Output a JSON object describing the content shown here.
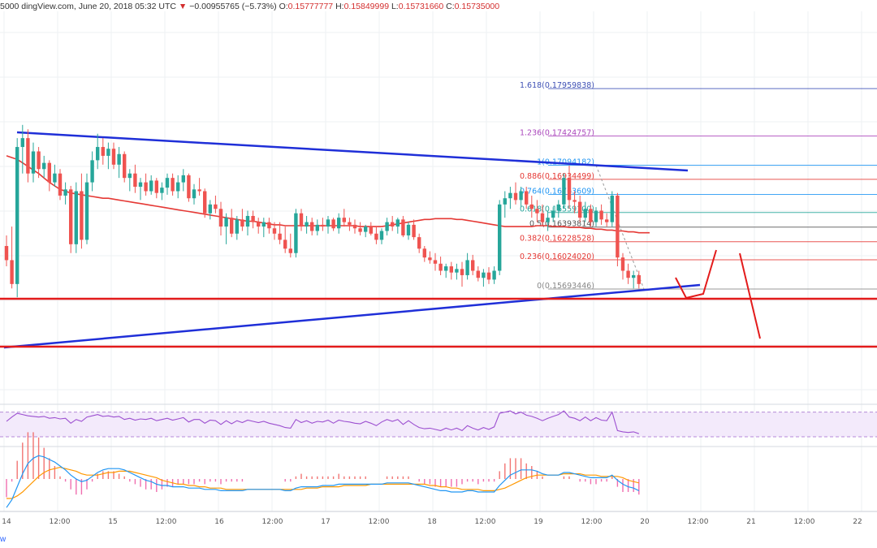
{
  "header": {
    "partial_open": "5000",
    "source": "dingView.com, June 20, 2018 05:32 UTC",
    "arrow": "▼",
    "change": "−0.00955765 (−5.73%)",
    "o_label": "O:",
    "o_value": "0.15777777",
    "h_label": "H:",
    "h_value": "0.15849999",
    "l_label": "L:",
    "l_value": "0.15731660",
    "c_label": "C:",
    "c_value": "0.15735000"
  },
  "footer_brand": "w",
  "colors": {
    "bull": "#26a69a",
    "bear": "#ef5350",
    "ma": "#e53935",
    "trendline": "#1f2fd8",
    "support": "#e31b1b",
    "rsi": "#9c4fd0",
    "macd": "#2196f3",
    "signal": "#ff9800"
  },
  "chart_data": {
    "type": "candlestick",
    "x_tick_labels": [
      "14",
      "12:00",
      "15",
      "12:00",
      "16",
      "12:00",
      "17",
      "12:00",
      "18",
      "12:00",
      "19",
      "12:00",
      "20",
      "12:00",
      "21",
      "12:00",
      "22"
    ],
    "fibonacci": [
      {
        "level": "0",
        "value": "0.15693446",
        "color": "#888888"
      },
      {
        "level": "0.236",
        "value": "0.16024020",
        "color": "#e53935"
      },
      {
        "level": "0.382",
        "value": "0.16228528",
        "color": "#e53935"
      },
      {
        "level": "0.5",
        "value": "0.16393814",
        "color": "#555555"
      },
      {
        "level": "0.618",
        "value": "0.16559100",
        "color": "#26a69a"
      },
      {
        "level": "0.764",
        "value": "0.16763609",
        "color": "#2196f3"
      },
      {
        "level": "0.886",
        "value": "0.16934499",
        "color": "#e53935"
      },
      {
        "level": "1",
        "value": "0.17094182",
        "color": "#2196f3"
      },
      {
        "level": "1.236",
        "value": "0.17424757",
        "color": "#ab47bc"
      },
      {
        "level": "1.618",
        "value": "0.17959838",
        "color": "#3f51b5"
      }
    ],
    "candles": [
      [
        0.1618,
        0.163,
        0.1595,
        0.1602
      ],
      [
        0.1602,
        0.164,
        0.157,
        0.1575
      ],
      [
        0.1575,
        0.174,
        0.156,
        0.173
      ],
      [
        0.173,
        0.1755,
        0.17,
        0.174
      ],
      [
        0.174,
        0.175,
        0.169,
        0.17
      ],
      [
        0.17,
        0.1735,
        0.169,
        0.1725
      ],
      [
        0.1725,
        0.173,
        0.1695,
        0.1705
      ],
      [
        0.1705,
        0.172,
        0.1695,
        0.1712
      ],
      [
        0.1712,
        0.1715,
        0.168,
        0.169
      ],
      [
        0.169,
        0.171,
        0.1685,
        0.17
      ],
      [
        0.17,
        0.1705,
        0.167,
        0.1675
      ],
      [
        0.1675,
        0.169,
        0.1665,
        0.1682
      ],
      [
        0.1682,
        0.1686,
        0.161,
        0.162
      ],
      [
        0.162,
        0.169,
        0.161,
        0.168
      ],
      [
        0.168,
        0.17,
        0.1615,
        0.1625
      ],
      [
        0.1625,
        0.17,
        0.162,
        0.169
      ],
      [
        0.169,
        0.1725,
        0.168,
        0.1715
      ],
      [
        0.1715,
        0.1745,
        0.1705,
        0.173
      ],
      [
        0.173,
        0.174,
        0.171,
        0.172
      ],
      [
        0.172,
        0.1735,
        0.1705,
        0.1728
      ],
      [
        0.1728,
        0.1735,
        0.1705,
        0.171
      ],
      [
        0.171,
        0.173,
        0.1695,
        0.1722
      ],
      [
        0.1722,
        0.1725,
        0.169,
        0.1695
      ],
      [
        0.1695,
        0.1705,
        0.168,
        0.17
      ],
      [
        0.17,
        0.171,
        0.1678,
        0.1685
      ],
      [
        0.1685,
        0.1695,
        0.167,
        0.169
      ],
      [
        0.169,
        0.17,
        0.1675,
        0.168
      ],
      [
        0.168,
        0.1698,
        0.1676,
        0.1692
      ],
      [
        0.1692,
        0.1695,
        0.1672,
        0.1678
      ],
      [
        0.1678,
        0.169,
        0.167,
        0.1684
      ],
      [
        0.1684,
        0.17,
        0.1676,
        0.1695
      ],
      [
        0.1695,
        0.17,
        0.1675,
        0.168
      ],
      [
        0.168,
        0.1698,
        0.1672,
        0.169
      ],
      [
        0.169,
        0.1705,
        0.168,
        0.1698
      ],
      [
        0.1698,
        0.17,
        0.1668,
        0.1672
      ],
      [
        0.1672,
        0.1688,
        0.1665,
        0.1682
      ],
      [
        0.1682,
        0.1695,
        0.1675,
        0.168
      ],
      [
        0.168,
        0.1683,
        0.165,
        0.1655
      ],
      [
        0.1655,
        0.167,
        0.1648,
        0.1665
      ],
      [
        0.1665,
        0.1675,
        0.1655,
        0.166
      ],
      [
        0.166,
        0.1668,
        0.163,
        0.164
      ],
      [
        0.164,
        0.1655,
        0.162,
        0.165
      ],
      [
        0.165,
        0.166,
        0.1628,
        0.1632
      ],
      [
        0.1632,
        0.1652,
        0.1625,
        0.1648
      ],
      [
        0.1648,
        0.166,
        0.1635,
        0.164
      ],
      [
        0.164,
        0.1658,
        0.163,
        0.1652
      ],
      [
        0.1652,
        0.1658,
        0.1638,
        0.1645
      ],
      [
        0.1645,
        0.165,
        0.1632,
        0.164
      ],
      [
        0.164,
        0.165,
        0.1628,
        0.1645
      ],
      [
        0.1645,
        0.165,
        0.1632,
        0.1638
      ],
      [
        0.1638,
        0.1645,
        0.1625,
        0.1632
      ],
      [
        0.1632,
        0.1645,
        0.162,
        0.1625
      ],
      [
        0.1625,
        0.164,
        0.161,
        0.1615
      ],
      [
        0.1615,
        0.1632,
        0.1605,
        0.161
      ],
      [
        0.161,
        0.166,
        0.1605,
        0.1655
      ],
      [
        0.1655,
        0.166,
        0.1635,
        0.164
      ],
      [
        0.164,
        0.1652,
        0.1632,
        0.1645
      ],
      [
        0.1645,
        0.165,
        0.163,
        0.1635
      ],
      [
        0.1635,
        0.1648,
        0.163,
        0.1642
      ],
      [
        0.1642,
        0.165,
        0.1635,
        0.164
      ],
      [
        0.164,
        0.1652,
        0.1632,
        0.1648
      ],
      [
        0.1648,
        0.165,
        0.1635,
        0.1638
      ],
      [
        0.1638,
        0.1655,
        0.1632,
        0.165
      ],
      [
        0.165,
        0.166,
        0.164,
        0.1645
      ],
      [
        0.1645,
        0.165,
        0.1635,
        0.1642
      ],
      [
        0.1642,
        0.1648,
        0.1632,
        0.1638
      ],
      [
        0.1638,
        0.1645,
        0.163,
        0.1634
      ],
      [
        0.1634,
        0.1642,
        0.1628,
        0.164
      ],
      [
        0.164,
        0.1645,
        0.163,
        0.1632
      ],
      [
        0.1632,
        0.164,
        0.162,
        0.1625
      ],
      [
        0.1625,
        0.1638,
        0.162,
        0.1635
      ],
      [
        0.1635,
        0.165,
        0.163,
        0.1645
      ],
      [
        0.1645,
        0.1652,
        0.1635,
        0.164
      ],
      [
        0.164,
        0.165,
        0.1632,
        0.1648
      ],
      [
        0.1648,
        0.1652,
        0.1628,
        0.163
      ],
      [
        0.163,
        0.1645,
        0.1625,
        0.1642
      ],
      [
        0.1642,
        0.1648,
        0.1625,
        0.1628
      ],
      [
        0.1628,
        0.1632,
        0.161,
        0.1615
      ],
      [
        0.1615,
        0.1618,
        0.16,
        0.1605
      ],
      [
        0.1605,
        0.1612,
        0.1598,
        0.1602
      ],
      [
        0.1602,
        0.161,
        0.159,
        0.1598
      ],
      [
        0.1598,
        0.1606,
        0.1585,
        0.159
      ],
      [
        0.159,
        0.1598,
        0.1582,
        0.1595
      ],
      [
        0.1595,
        0.16,
        0.158,
        0.1588
      ],
      [
        0.1588,
        0.1598,
        0.158,
        0.1592
      ],
      [
        0.1592,
        0.16,
        0.1572,
        0.1585
      ],
      [
        0.1585,
        0.161,
        0.158,
        0.1602
      ],
      [
        0.1602,
        0.1608,
        0.1585,
        0.159
      ],
      [
        0.159,
        0.1595,
        0.1578,
        0.1582
      ],
      [
        0.1582,
        0.1592,
        0.1572,
        0.1588
      ],
      [
        0.1588,
        0.1594,
        0.1575,
        0.158
      ],
      [
        0.158,
        0.1595,
        0.1575,
        0.159
      ],
      [
        0.159,
        0.167,
        0.1585,
        0.1665
      ],
      [
        0.1665,
        0.168,
        0.165,
        0.1672
      ],
      [
        0.1672,
        0.1685,
        0.166,
        0.1678
      ],
      [
        0.1678,
        0.169,
        0.1665,
        0.167
      ],
      [
        0.167,
        0.1685,
        0.1662,
        0.168
      ],
      [
        0.168,
        0.1685,
        0.166,
        0.1665
      ],
      [
        0.1665,
        0.1675,
        0.165,
        0.166
      ],
      [
        0.166,
        0.167,
        0.1645,
        0.1655
      ],
      [
        0.1655,
        0.1665,
        0.164,
        0.1645
      ],
      [
        0.1645,
        0.1658,
        0.1635,
        0.165
      ],
      [
        0.165,
        0.1662,
        0.1645,
        0.1658
      ],
      [
        0.1658,
        0.167,
        0.165,
        0.1665
      ],
      [
        0.1665,
        0.17,
        0.166,
        0.1695
      ],
      [
        0.1695,
        0.1709,
        0.166,
        0.167
      ],
      [
        0.167,
        0.168,
        0.1655,
        0.1668
      ],
      [
        0.1668,
        0.1675,
        0.1645,
        0.165
      ],
      [
        0.165,
        0.1668,
        0.1645,
        0.166
      ],
      [
        0.166,
        0.1665,
        0.164,
        0.1645
      ],
      [
        0.1645,
        0.1662,
        0.164,
        0.1658
      ],
      [
        0.1658,
        0.1665,
        0.1642,
        0.1648
      ],
      [
        0.1648,
        0.1655,
        0.164,
        0.1645
      ],
      [
        0.1645,
        0.168,
        0.164,
        0.1675
      ],
      [
        0.1675,
        0.1678,
        0.1595,
        0.1605
      ],
      [
        0.1605,
        0.161,
        0.158,
        0.159
      ],
      [
        0.159,
        0.1598,
        0.1575,
        0.1582
      ],
      [
        0.1582,
        0.159,
        0.157,
        0.1585
      ],
      [
        0.1585,
        0.159,
        0.157,
        0.1575
      ]
    ],
    "ma": [
      0.172,
      0.1718,
      0.1716,
      0.1712,
      0.1708,
      0.1704,
      0.17,
      0.1695,
      0.169,
      0.1686,
      0.1682,
      0.168,
      0.1678,
      0.1677,
      0.1676,
      0.1675,
      0.1674,
      0.1673,
      0.1672,
      0.1672,
      0.1671,
      0.167,
      0.1669,
      0.1668,
      0.1667,
      0.1666,
      0.1665,
      0.1664,
      0.1663,
      0.1662,
      0.1661,
      0.166,
      0.1659,
      0.1658,
      0.1657,
      0.1656,
      0.1655,
      0.1654,
      0.1653,
      0.1652,
      0.1651,
      0.165,
      0.1649,
      0.1648,
      0.1647,
      0.1646,
      0.1646,
      0.1645,
      0.1644,
      0.1643,
      0.1642,
      0.1642,
      0.1641,
      0.1641,
      0.1641,
      0.1641,
      0.1641,
      0.1641,
      0.1641,
      0.1641,
      0.1641,
      0.1641,
      0.1641,
      0.1641,
      0.1641,
      0.1641,
      0.164,
      0.164,
      0.164,
      0.164,
      0.164,
      0.1641,
      0.1642,
      0.1643,
      0.1644,
      0.1645,
      0.1646,
      0.1647,
      0.1648,
      0.1648,
      0.1649,
      0.1649,
      0.1649,
      0.1649,
      0.1648,
      0.1648,
      0.1647,
      0.1646,
      0.1645,
      0.1644,
      0.1643,
      0.1642,
      0.1641,
      0.164,
      0.164,
      0.164,
      0.164,
      0.164,
      0.164,
      0.1641,
      0.1641,
      0.1641,
      0.164,
      0.164,
      0.164,
      0.1639,
      0.1639,
      0.1639,
      0.1638,
      0.1638,
      0.1637,
      0.1637,
      0.1636,
      0.1636,
      0.1635,
      0.1635,
      0.1634,
      0.1634,
      0.1633,
      0.1633,
      0.1633
    ],
    "rsi": [
      55,
      62,
      68,
      66,
      64,
      63,
      62,
      63,
      60,
      61,
      59,
      60,
      52,
      58,
      55,
      62,
      64,
      66,
      63,
      64,
      62,
      63,
      58,
      60,
      57,
      59,
      58,
      60,
      56,
      58,
      60,
      57,
      59,
      61,
      54,
      58,
      58,
      52,
      57,
      56,
      50,
      56,
      51,
      56,
      53,
      57,
      55,
      53,
      55,
      52,
      50,
      48,
      45,
      44,
      58,
      53,
      56,
      52,
      55,
      54,
      57,
      52,
      57,
      55,
      54,
      52,
      51,
      55,
      52,
      48,
      54,
      58,
      55,
      58,
      50,
      56,
      50,
      45,
      43,
      44,
      42,
      40,
      44,
      41,
      44,
      40,
      48,
      44,
      41,
      45,
      42,
      46,
      68,
      70,
      72,
      67,
      70,
      65,
      63,
      60,
      56,
      60,
      63,
      66,
      72,
      62,
      60,
      56,
      62,
      56,
      61,
      57,
      56,
      70,
      40,
      38,
      37,
      38,
      35
    ],
    "macd": [
      -0.0022,
      -0.0016,
      -0.0006,
      0.0004,
      0.0012,
      0.0016,
      0.0018,
      0.0017,
      0.0015,
      0.0013,
      0.001,
      0.0007,
      0.0003,
      0.0,
      -0.0002,
      -0.0001,
      0.0002,
      0.0005,
      0.0007,
      0.0008,
      0.0008,
      0.0008,
      0.0007,
      0.0005,
      0.0003,
      0.0001,
      -0.0001,
      -0.0002,
      -0.0004,
      -0.0005,
      -0.0005,
      -0.0006,
      -0.0006,
      -0.0006,
      -0.0007,
      -0.0007,
      -0.0007,
      -0.0008,
      -0.0008,
      -0.0008,
      -0.0009,
      -0.0009,
      -0.0009,
      -0.0009,
      -0.0009,
      -0.0008,
      -0.0008,
      -0.0008,
      -0.0008,
      -0.0008,
      -0.0008,
      -0.0008,
      -0.0009,
      -0.0009,
      -0.0007,
      -0.0006,
      -0.0006,
      -0.0006,
      -0.0006,
      -0.0005,
      -0.0005,
      -0.0005,
      -0.0004,
      -0.0004,
      -0.0004,
      -0.0004,
      -0.0004,
      -0.0004,
      -0.0004,
      -0.0004,
      -0.0004,
      -0.0003,
      -0.0003,
      -0.0003,
      -0.0003,
      -0.0003,
      -0.0004,
      -0.0005,
      -0.0006,
      -0.0007,
      -0.0008,
      -0.0009,
      -0.0009,
      -0.001,
      -0.001,
      -0.001,
      -0.0009,
      -0.0009,
      -0.001,
      -0.001,
      -0.001,
      -0.001,
      -0.0005,
      -0.0001,
      0.0003,
      0.0005,
      0.0007,
      0.0007,
      0.0007,
      0.0006,
      0.0004,
      0.0003,
      0.0003,
      0.0003,
      0.0005,
      0.0005,
      0.0004,
      0.0003,
      0.0002,
      0.0001,
      0.0001,
      0.0001,
      0.0001,
      0.0003,
      -0.0001,
      -0.0004,
      -0.0006,
      -0.0007,
      -0.0009
    ],
    "signal": [
      -0.0015,
      -0.0015,
      -0.0013,
      -0.001,
      -0.0006,
      -0.0002,
      0.0002,
      0.0005,
      0.0007,
      0.0008,
      0.0009,
      0.0008,
      0.0007,
      0.0006,
      0.0004,
      0.0003,
      0.0003,
      0.0003,
      0.0004,
      0.0005,
      0.0005,
      0.0006,
      0.0006,
      0.0006,
      0.0005,
      0.0004,
      0.0003,
      0.0002,
      0.0001,
      -0.0001,
      -0.0002,
      -0.0003,
      -0.0004,
      -0.0004,
      -0.0005,
      -0.0005,
      -0.0006,
      -0.0006,
      -0.0007,
      -0.0007,
      -0.0007,
      -0.0008,
      -0.0008,
      -0.0008,
      -0.0008,
      -0.0008,
      -0.0008,
      -0.0008,
      -0.0008,
      -0.0008,
      -0.0008,
      -0.0008,
      -0.0008,
      -0.0008,
      -0.0008,
      -0.0008,
      -0.0007,
      -0.0007,
      -0.0007,
      -0.0006,
      -0.0006,
      -0.0006,
      -0.0006,
      -0.0005,
      -0.0005,
      -0.0005,
      -0.0005,
      -0.0005,
      -0.0004,
      -0.0004,
      -0.0004,
      -0.0004,
      -0.0004,
      -0.0004,
      -0.0004,
      -0.0004,
      -0.0004,
      -0.0004,
      -0.0004,
      -0.0005,
      -0.0005,
      -0.0006,
      -0.0006,
      -0.0007,
      -0.0007,
      -0.0008,
      -0.0008,
      -0.0008,
      -0.0008,
      -0.0009,
      -0.0009,
      -0.0009,
      -0.0008,
      -0.0007,
      -0.0005,
      -0.0003,
      -0.0001,
      0.0001,
      0.0002,
      0.0003,
      0.0003,
      0.0003,
      0.0003,
      0.0003,
      0.0004,
      0.0004,
      0.0004,
      0.0004,
      0.0003,
      0.0003,
      0.0003,
      0.0002,
      0.0002,
      0.0002,
      0.0002,
      0.0001,
      -0.0001,
      -0.0002,
      -0.0003
    ]
  }
}
